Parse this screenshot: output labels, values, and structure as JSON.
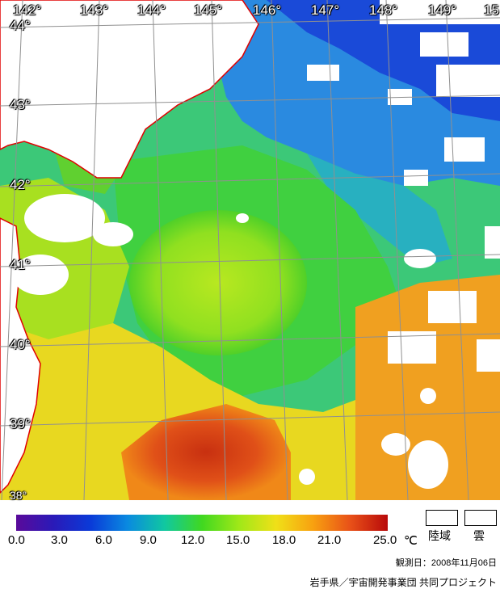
{
  "map": {
    "lon_labels": [
      "142°",
      "143°",
      "144°",
      "145°",
      "146°",
      "147°",
      "148°",
      "149°",
      "15"
    ],
    "lat_labels": [
      "44°",
      "43°",
      "42°",
      "41°",
      "40°",
      "39°",
      "38°"
    ]
  },
  "legend": {
    "ticks": [
      "0.0",
      "3.0",
      "6.0",
      "9.0",
      "12.0",
      "15.0",
      "18.0",
      "21.0",
      "25.0"
    ],
    "unit": "℃",
    "colors": [
      "#5a0a9a",
      "#2a1ab8",
      "#0a3ad8",
      "#0a8ae0",
      "#10c8a0",
      "#40d820",
      "#a0e818",
      "#f0e018",
      "#f8a010",
      "#e85018",
      "#b80a0a"
    ],
    "land_label": "陸域",
    "cloud_label": "雲"
  },
  "footer": {
    "observation_date": "観測日：2008年11月06日",
    "credit": "岩手県／宇宙開発事業団 共同プロジェクト"
  }
}
